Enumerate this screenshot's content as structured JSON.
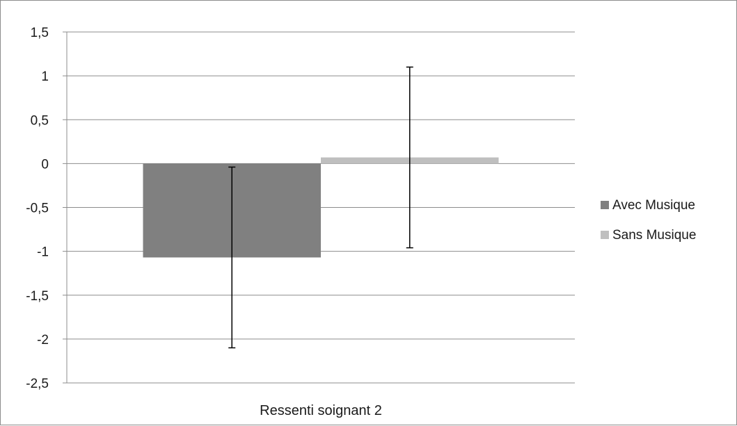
{
  "chart_data": {
    "type": "bar",
    "categories": [
      "Ressenti soignant 2"
    ],
    "series": [
      {
        "name": "Avec Musique",
        "values": [
          -1.07
        ],
        "error_low": [
          -2.1
        ],
        "error_high": [
          -0.04
        ],
        "color": "#808080"
      },
      {
        "name": "Sans Musique",
        "values": [
          0.07
        ],
        "error_low": [
          -0.96
        ],
        "error_high": [
          1.1
        ],
        "color": "#bfbfbf"
      }
    ],
    "title": "",
    "xlabel": "",
    "ylabel": "",
    "ylim": [
      -2.5,
      1.5
    ],
    "yticks": [
      1.5,
      1,
      0.5,
      0,
      -0.5,
      -1,
      -1.5,
      -2,
      -2.5
    ],
    "ytick_labels": [
      "1,5",
      "1",
      "0,5",
      "0",
      "-0,5",
      "-1",
      "-1,5",
      "-2",
      "-2,5"
    ],
    "grid": true,
    "legend_position": "right",
    "gridline_color": "#8c8c8c"
  }
}
